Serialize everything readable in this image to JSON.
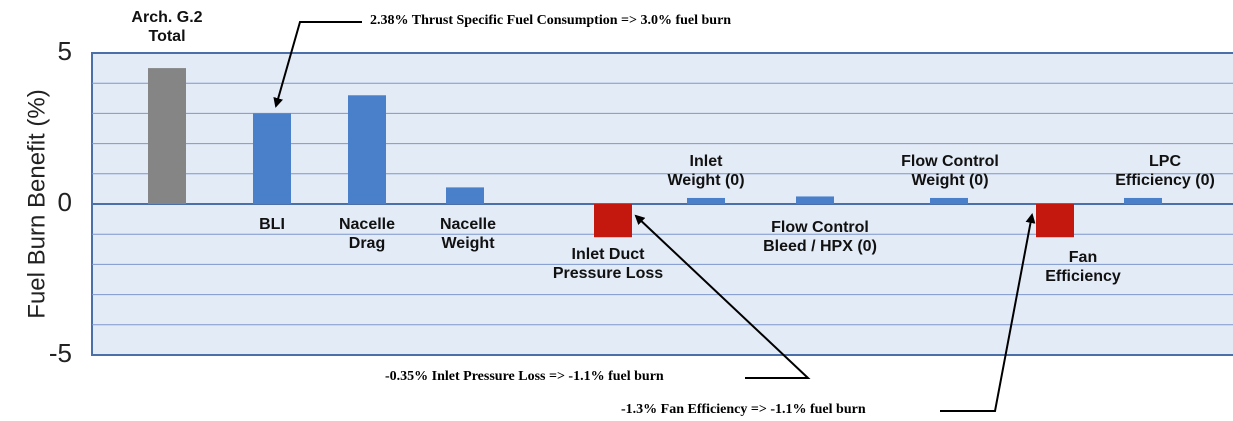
{
  "chart_data": {
    "type": "bar",
    "y_label": "Fuel Burn Benefit (%)",
    "categories": [
      "Arch. G.2 Total",
      "BLI",
      "Nacelle Drag",
      "Nacelle Weight",
      "Inlet Duct Pressure Loss",
      "Inlet Weight (0)",
      "Flow Control Bleed / HPX (0)",
      "Flow Control Weight (0)",
      "Fan Efficiency",
      "LPC Efficiency (0)"
    ],
    "values": [
      4.5,
      3.0,
      3.6,
      0.55,
      -1.1,
      0.2,
      0.25,
      0.2,
      -1.1,
      0.2
    ],
    "colors": [
      "#858585",
      "#4a7fc9",
      "#4a7fc9",
      "#4a7fc9",
      "#c4170e",
      "#4a7fc9",
      "#4a7fc9",
      "#4a7fc9",
      "#c4170e",
      "#4a7fc9"
    ],
    "ylim": [
      -5,
      5
    ],
    "yticks": [
      -5,
      0,
      5
    ],
    "grid": true,
    "grid_lines": [
      -4,
      -3,
      -2,
      -1,
      1,
      2,
      3,
      4
    ],
    "annotations": [
      "2.38% Thrust Specific Fuel Consumption => 3.0% fuel burn",
      "-0.35% Inlet Pressure Loss => -1.1% fuel burn",
      "-1.3% Fan Efficiency => -1.1% fuel burn"
    ]
  }
}
